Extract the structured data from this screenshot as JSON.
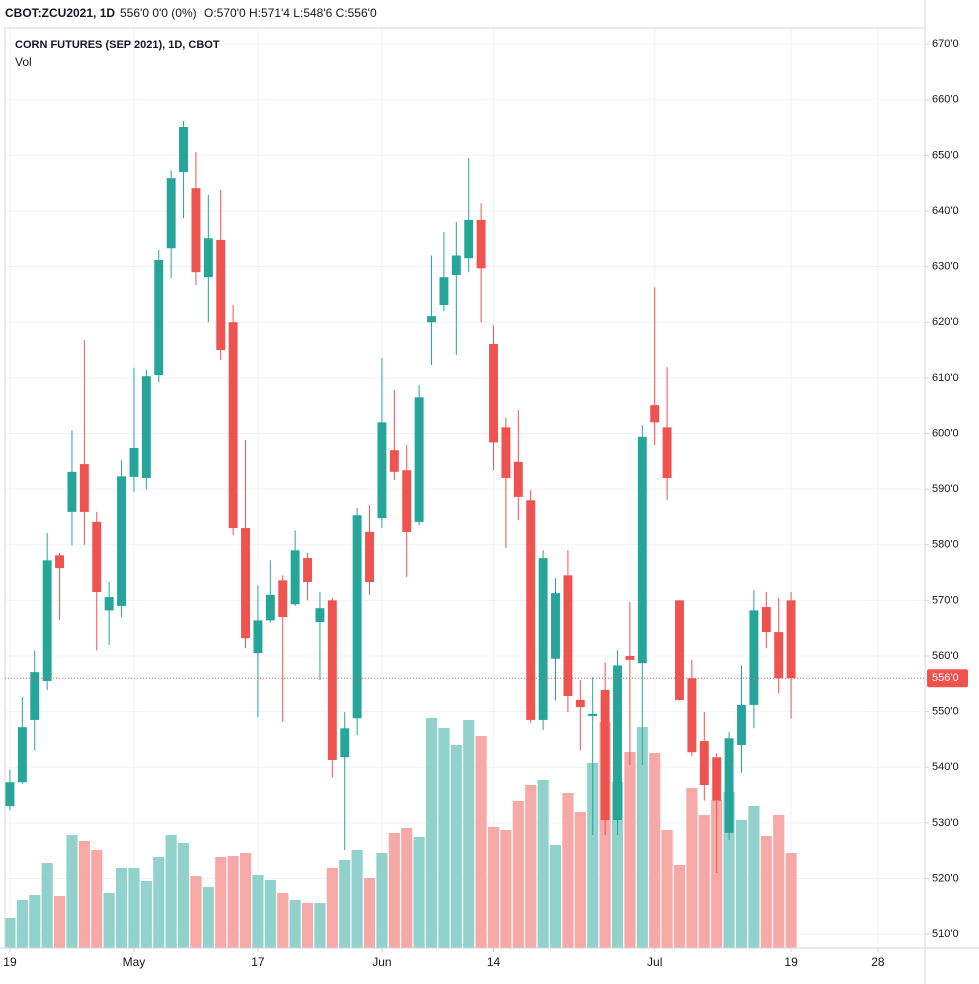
{
  "chart_data": {
    "type": "candlestick",
    "header": {
      "symbol": "CBOT:ZCU2021, 1D",
      "change": "556'0 0'0 (0%)",
      "ohlc": "O:570'0 H:571'4 L:548'6 C:556'0"
    },
    "title": "CORN FUTURES (SEP 2021), 1D, CBOT",
    "volume_label": "Vol",
    "up_color": "#26a69a",
    "down_color": "#ef5350",
    "volume_up_color": "#92d2cc",
    "volume_down_color": "#f7a9a7",
    "open": [
      533,
      537.3,
      548.5,
      555.5,
      578.1,
      585.9,
      594.5,
      584.1,
      568.2,
      569,
      592.2,
      592,
      610.5,
      633.3,
      647,
      644.1,
      628.1,
      634.8,
      620,
      583,
      560.5,
      566.4,
      573.6,
      569.3,
      577.6,
      566.1,
      570,
      541.8,
      548.8,
      582.3,
      584.8,
      597,
      593.4,
      584.1,
      620,
      623.1,
      628.5,
      631.5,
      638.4,
      616.1,
      601.1,
      594.9,
      588,
      548.5,
      559.5,
      574.5,
      552.1,
      549.2,
      553.9,
      530.5,
      560,
      558.7,
      605.1,
      601.1,
      570,
      556,
      544.7,
      541.8,
      528.2,
      544,
      551.2,
      568.8,
      564.3,
      570
    ],
    "high": [
      539.5,
      552.6,
      561,
      582.1,
      578.5,
      600.6,
      616.8,
      585.9,
      573.3,
      595.2,
      611.8,
      611.5,
      633,
      647.3,
      656.2,
      650.6,
      642.9,
      643.8,
      623.1,
      598.8,
      572.7,
      577.2,
      574.5,
      582.6,
      578.5,
      571.5,
      570.5,
      549.9,
      586.6,
      587.1,
      613.6,
      607.8,
      597.9,
      608.7,
      632,
      636.2,
      638,
      649.5,
      641.4,
      619.5,
      602.8,
      604.2,
      589.8,
      579,
      574,
      579,
      555.7,
      556.2,
      558.9,
      561,
      569.7,
      601.5,
      626.3,
      611.9,
      570,
      559.3,
      549.9,
      542.5,
      546.3,
      558.3,
      571.8,
      571.5,
      570.4,
      571.5
    ],
    "low": [
      532.3,
      537,
      543,
      553.9,
      566.5,
      579.9,
      580,
      561,
      562,
      567,
      589.5,
      590,
      609.2,
      627.9,
      638.7,
      626.7,
      620,
      613.2,
      581.7,
      561.4,
      549,
      566,
      548.1,
      569,
      570,
      555.7,
      538.2,
      525.1,
      545.8,
      571,
      583,
      591.6,
      574.2,
      583.5,
      612.3,
      622,
      614.1,
      629,
      620,
      593.4,
      579.4,
      584.4,
      548,
      546.7,
      552,
      549.9,
      543,
      527.8,
      527.8,
      527.8,
      540.4,
      540.4,
      597.9,
      588,
      552,
      542,
      534,
      521,
      526.9,
      539,
      547,
      561.4,
      553.3,
      548.75
    ],
    "close": [
      537.3,
      547.2,
      557.1,
      577.2,
      575.8,
      593.1,
      585.9,
      571.5,
      570.6,
      592.3,
      597.4,
      610.3,
      631.2,
      645.9,
      655.1,
      629,
      635.1,
      615,
      583,
      563.2,
      566.4,
      571,
      567,
      579,
      573.3,
      568.6,
      541.3,
      547,
      585.3,
      573.3,
      602,
      593.1,
      582.3,
      606.5,
      621.1,
      628.1,
      632,
      638.4,
      629.7,
      598.4,
      592,
      588.6,
      548.5,
      577.6,
      571.3,
      552.8,
      550.8,
      549.6,
      530.5,
      558.3,
      559.3,
      599.4,
      602,
      592,
      552.1,
      542.7,
      536.8,
      534,
      545.2,
      551.2,
      568.2,
      564.3,
      556,
      556
    ],
    "volume": [
      30,
      48,
      53,
      85,
      52,
      113,
      107,
      98,
      55,
      80,
      80,
      67,
      91,
      113,
      105,
      72,
      61,
      91,
      92,
      95,
      73,
      68,
      55,
      48,
      45,
      45,
      80,
      88,
      98,
      70,
      95,
      115,
      120,
      111,
      230,
      220,
      203,
      228,
      212,
      121,
      118,
      147,
      163,
      168,
      103,
      155,
      136,
      185,
      226,
      166,
      196,
      221,
      195,
      118,
      83,
      160,
      133,
      148,
      156,
      128,
      142,
      112,
      133,
      95
    ],
    "volume_lim": [
      0,
      920
    ],
    "last_price": 556,
    "last_price_label": "556'0",
    "xlim": [
      -0.4,
      73.8
    ],
    "xticks": [
      {
        "value": 0,
        "label": "19"
      },
      {
        "value": 10,
        "label": "May"
      },
      {
        "value": 20,
        "label": "17"
      },
      {
        "value": 30,
        "label": "Jun"
      },
      {
        "value": 39,
        "label": "14"
      },
      {
        "value": 52,
        "label": "Jul"
      },
      {
        "value": 63,
        "label": "19"
      },
      {
        "value": 70,
        "label": "28"
      }
    ],
    "ylim": [
      507.5,
      672.9
    ],
    "yticks": [
      {
        "value": 510,
        "label": "510'0"
      },
      {
        "value": 520,
        "label": "520'0"
      },
      {
        "value": 530,
        "label": "530'0"
      },
      {
        "value": 540,
        "label": "540'0"
      },
      {
        "value": 550,
        "label": "550'0"
      },
      {
        "value": 560,
        "label": "560'0"
      },
      {
        "value": 570,
        "label": "570'0"
      },
      {
        "value": 580,
        "label": "580'0"
      },
      {
        "value": 590,
        "label": "590'0"
      },
      {
        "value": 600,
        "label": "600'0"
      },
      {
        "value": 610,
        "label": "610'0"
      },
      {
        "value": 620,
        "label": "620'0"
      },
      {
        "value": 630,
        "label": "630'0"
      },
      {
        "value": 640,
        "label": "640'0"
      },
      {
        "value": 650,
        "label": "650'0"
      },
      {
        "value": 660,
        "label": "660'0"
      },
      {
        "value": 670,
        "label": "670'0"
      }
    ],
    "grid": true
  }
}
